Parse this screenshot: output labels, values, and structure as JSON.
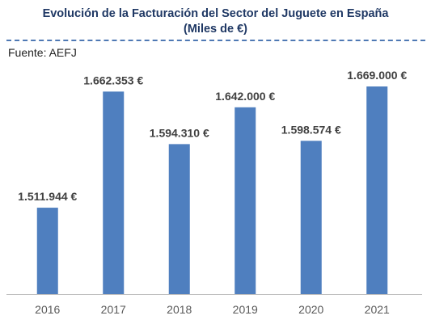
{
  "title_line1": "Evolución de la Facturación del Sector del Juguete en España",
  "title_line2": "(Miles de €)",
  "source": "Fuente: AEFJ",
  "colors": {
    "bar": "#4f7fbf",
    "title": "#1f3864",
    "dash": "#4f79b4"
  },
  "chart_data": {
    "type": "bar",
    "title": "Evolución de la Facturación del Sector del Juguete en España (Miles de €)",
    "categories": [
      "2016",
      "2017",
      "2018",
      "2019",
      "2020",
      "2021"
    ],
    "values": [
      1511944,
      1662353,
      1594310,
      1642000,
      1598574,
      1669000
    ],
    "value_labels": [
      "1.511.944 €",
      "1.662.353 €",
      "1.594.310 €",
      "1.642.000 €",
      "1.598.574 €",
      "1.669.000 €"
    ],
    "xlabel": "",
    "ylabel": "",
    "ylim": [
      1400000,
      1700000
    ],
    "grid": false,
    "legend": "none"
  }
}
